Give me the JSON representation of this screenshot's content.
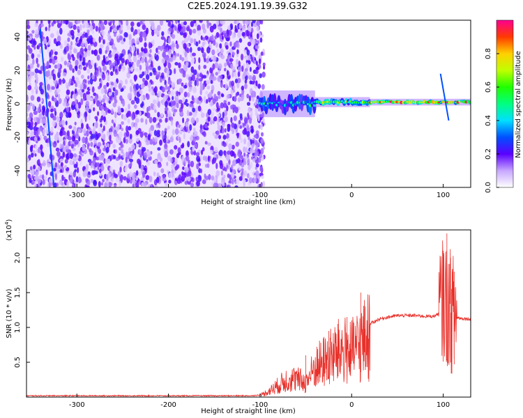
{
  "title": "C2E5.2024.191.19.39.G32",
  "chart_data": [
    {
      "type": "heatmap",
      "xlabel": "Height of straight line (km)",
      "ylabel": "Frequency (Hz)",
      "xlim": [
        -355,
        130
      ],
      "ylim": [
        -50,
        50
      ],
      "x_ticks": [
        -300,
        -200,
        -100,
        0,
        100
      ],
      "y_ticks": [
        -40,
        -20,
        0,
        20,
        40
      ],
      "colorbar": {
        "label": "Normalized spectral amplitude",
        "range": [
          0,
          1
        ],
        "ticks": [
          0.0,
          0.2,
          0.4,
          0.6,
          0.8
        ]
      },
      "regions": [
        {
          "x_range": [
            -355,
            -100
          ],
          "description_type": "broadband noise",
          "mean_amplitude": 0.12
        },
        {
          "x_range": [
            -100,
            -40
          ],
          "freq_center": 0,
          "freq_halfwidth": 8,
          "peak_amplitude": 0.55
        },
        {
          "x_range": [
            -40,
            20
          ],
          "freq_center": 1,
          "freq_halfwidth": 3,
          "peak_amplitude": 0.8
        },
        {
          "x_range": [
            20,
            130
          ],
          "freq_center": 1,
          "freq_halfwidth": 2,
          "peak_amplitude": 1.0
        }
      ],
      "streaks": [
        {
          "x_start": -340,
          "x_end": -325,
          "freq_start": 45,
          "freq_end": -50
        },
        {
          "x_start": 97,
          "x_end": 106,
          "freq_start": 18,
          "freq_end": -10
        }
      ]
    },
    {
      "type": "line",
      "xlabel": "Height of straight line (km)",
      "ylabel": "SNR (10 * v/v)",
      "y_multiplier_label": "(x10",
      "y_multiplier_exp": "4",
      "y_multiplier_close": ")",
      "xlim": [
        -355,
        130
      ],
      "ylim": [
        0,
        2.4
      ],
      "x_ticks": [
        -300,
        -200,
        -100,
        0,
        100
      ],
      "y_ticks": [
        0.5,
        1.0,
        1.5,
        2.0
      ],
      "series_color": "#e8302a",
      "series": [
        {
          "x": [
            -355,
            -300,
            -200,
            -110,
            -100,
            -90,
            -80,
            -70,
            -60,
            -50,
            -40,
            -30,
            -20,
            -10,
            0,
            10,
            20,
            30,
            40,
            50,
            60,
            70,
            80,
            90,
            95,
            100,
            105,
            110,
            115,
            120,
            130
          ],
          "y": [
            0.02,
            0.02,
            0.02,
            0.02,
            0.03,
            0.1,
            0.2,
            0.3,
            0.3,
            0.25,
            0.5,
            0.6,
            0.7,
            0.8,
            0.75,
            0.9,
            1.05,
            1.12,
            1.15,
            1.17,
            1.17,
            1.17,
            1.16,
            1.16,
            1.2,
            1.4,
            1.3,
            1.2,
            1.14,
            1.13,
            1.12
          ],
          "spikes": [
            {
              "x": -50,
              "y": 0.6
            },
            {
              "x": -35,
              "y": 0.45
            },
            {
              "x": -25,
              "y": 0.95
            },
            {
              "x": -15,
              "y": 1.05
            },
            {
              "x": -5,
              "y": 1.15
            },
            {
              "x": 10,
              "y": 1.5
            },
            {
              "x": 15,
              "y": 1.3
            },
            {
              "x": 100,
              "y": 2.1
            },
            {
              "x": 104,
              "y": 2.35
            },
            {
              "x": 108,
              "y": 2.0
            },
            {
              "x": 112,
              "y": 1.8
            }
          ]
        }
      ]
    }
  ]
}
